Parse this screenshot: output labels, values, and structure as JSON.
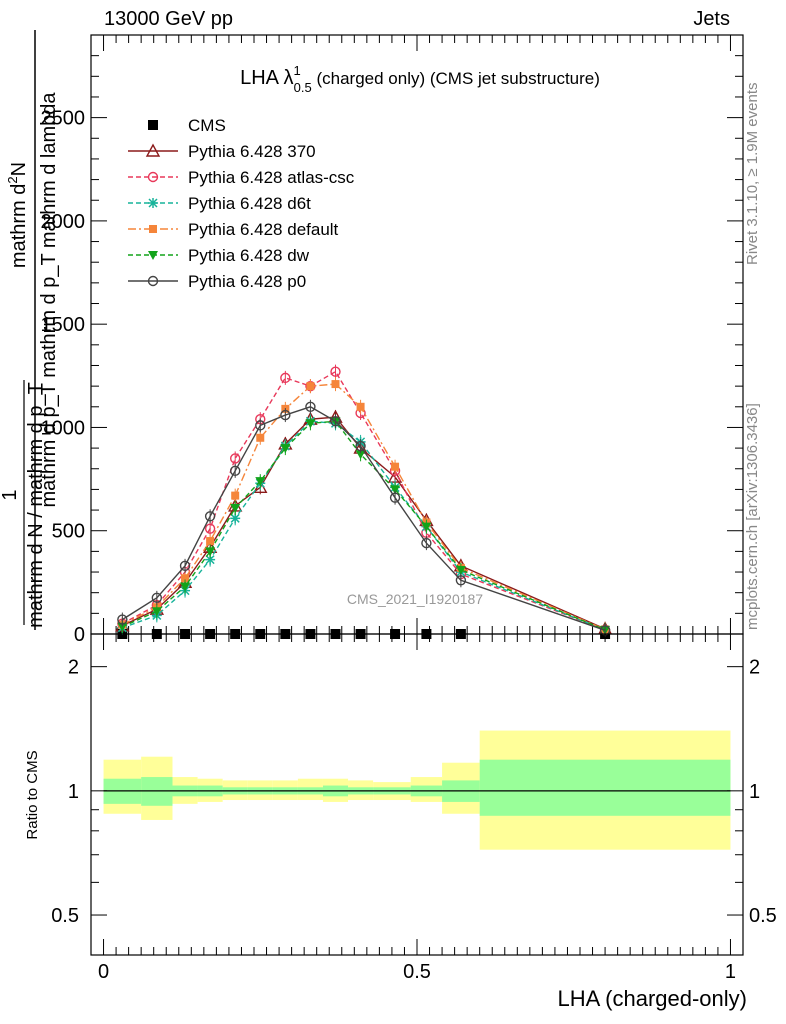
{
  "header": {
    "left": "13000 GeV pp",
    "right": "Jets"
  },
  "side_labels": {
    "rivet": "Rivet 3.1.10, ≥ 1.9M events",
    "mcplots": "mcplots.cern.ch [arXiv:1306.3436]"
  },
  "chart_data": [
    {
      "type": "line",
      "title": "LHA λ",
      "title_superscript": "1",
      "title_subscript": "0.5",
      "title_suffix": "(charged only) (CMS jet substructure)",
      "watermark": "CMS_2021_I1920187",
      "ylabel_numerator": "mathrm d",
      "ylabel_numerator_sup": "2",
      "ylabel_numerator_end": "N",
      "ylabel_denominator": "mathrm d p_T mathrm d p_T mathrm d lambda",
      "ylabel_prefix": "1",
      "ylabel_prefix_denominator": "mathrm d N / mathrm d p_T",
      "ylim": [
        0,
        2900
      ],
      "yticks": [
        0,
        500,
        1000,
        1500,
        2000,
        2500
      ],
      "ytick_labels": [
        "0",
        "500",
        "1000",
        "1500",
        "2000",
        "2500"
      ],
      "xlim": [
        -0.02,
        1.02
      ],
      "legend_position": "top-left",
      "x": [
        0.03,
        0.085,
        0.13,
        0.17,
        0.21,
        0.25,
        0.29,
        0.33,
        0.37,
        0.41,
        0.465,
        0.515,
        0.57,
        0.8
      ],
      "series": [
        {
          "name": "CMS",
          "color": "#000000",
          "marker": "filled-square",
          "values": [
            0,
            0,
            0,
            0,
            0,
            0,
            0,
            0,
            0,
            0,
            0,
            0,
            0,
            0
          ]
        },
        {
          "name": "Pythia 6.428 370",
          "color": "#8b1a1a",
          "marker": "open-triangle",
          "values": [
            40,
            120,
            250,
            420,
            620,
            710,
            920,
            1040,
            1050,
            900,
            760,
            550,
            330,
            25
          ]
        },
        {
          "name": "Pythia 6.428 atlas-csc",
          "color": "#e8385a",
          "marker": "open-circle",
          "values": [
            50,
            140,
            300,
            510,
            850,
            1040,
            1240,
            1200,
            1270,
            1070,
            790,
            490,
            290,
            20
          ]
        },
        {
          "name": "Pythia 6.428 d6t",
          "color": "#17b39a",
          "marker": "star",
          "values": [
            30,
            90,
            210,
            360,
            560,
            730,
            910,
            1030,
            1020,
            930,
            710,
            520,
            300,
            20
          ]
        },
        {
          "name": "Pythia 6.428 default",
          "color": "#f5853a",
          "marker": "filled-square-small",
          "values": [
            45,
            130,
            270,
            450,
            670,
            950,
            1090,
            1200,
            1210,
            1100,
            810,
            540,
            320,
            22
          ]
        },
        {
          "name": "Pythia 6.428 dw",
          "color": "#12a31a",
          "marker": "filled-triangle-down",
          "values": [
            35,
            110,
            230,
            400,
            610,
            740,
            900,
            1020,
            1030,
            870,
            700,
            520,
            310,
            20
          ]
        },
        {
          "name": "Pythia 6.428 p0",
          "color": "#444444",
          "marker": "open-circle",
          "values": [
            70,
            175,
            330,
            570,
            790,
            1010,
            1060,
            1100,
            1030,
            910,
            660,
            440,
            260,
            18
          ]
        }
      ]
    },
    {
      "type": "area",
      "ylabel": "Ratio to CMS",
      "xlabel": "LHA (charged-only)",
      "yscale": "log",
      "ylim": [
        0.4,
        2.4
      ],
      "yticks": [
        0.5,
        1,
        2
      ],
      "ytick_labels": [
        "0.5",
        "1",
        "2"
      ],
      "xticks": [
        0,
        0.5,
        1
      ],
      "xtick_labels": [
        "0",
        "0.5",
        "1"
      ],
      "xlim": [
        -0.02,
        1.02
      ],
      "reference_line": 1,
      "bands": {
        "edges": [
          0,
          0.06,
          0.11,
          0.15,
          0.19,
          0.23,
          0.27,
          0.31,
          0.35,
          0.39,
          0.43,
          0.49,
          0.54,
          0.6,
          1.0
        ],
        "stat_color": "#99ff99",
        "total_color": "#ffff99",
        "stat_lo": [
          0.93,
          0.92,
          0.97,
          0.97,
          0.98,
          0.98,
          0.98,
          0.98,
          0.97,
          0.98,
          0.98,
          0.97,
          0.94,
          0.87
        ],
        "stat_hi": [
          1.07,
          1.08,
          1.03,
          1.03,
          1.02,
          1.02,
          1.02,
          1.02,
          1.03,
          1.02,
          1.02,
          1.03,
          1.06,
          1.19
        ],
        "total_lo": [
          0.88,
          0.85,
          0.93,
          0.94,
          0.95,
          0.95,
          0.95,
          0.95,
          0.94,
          0.95,
          0.95,
          0.94,
          0.88,
          0.72
        ],
        "total_hi": [
          1.19,
          1.21,
          1.08,
          1.07,
          1.06,
          1.06,
          1.06,
          1.07,
          1.07,
          1.06,
          1.05,
          1.08,
          1.17,
          1.4
        ]
      }
    }
  ]
}
